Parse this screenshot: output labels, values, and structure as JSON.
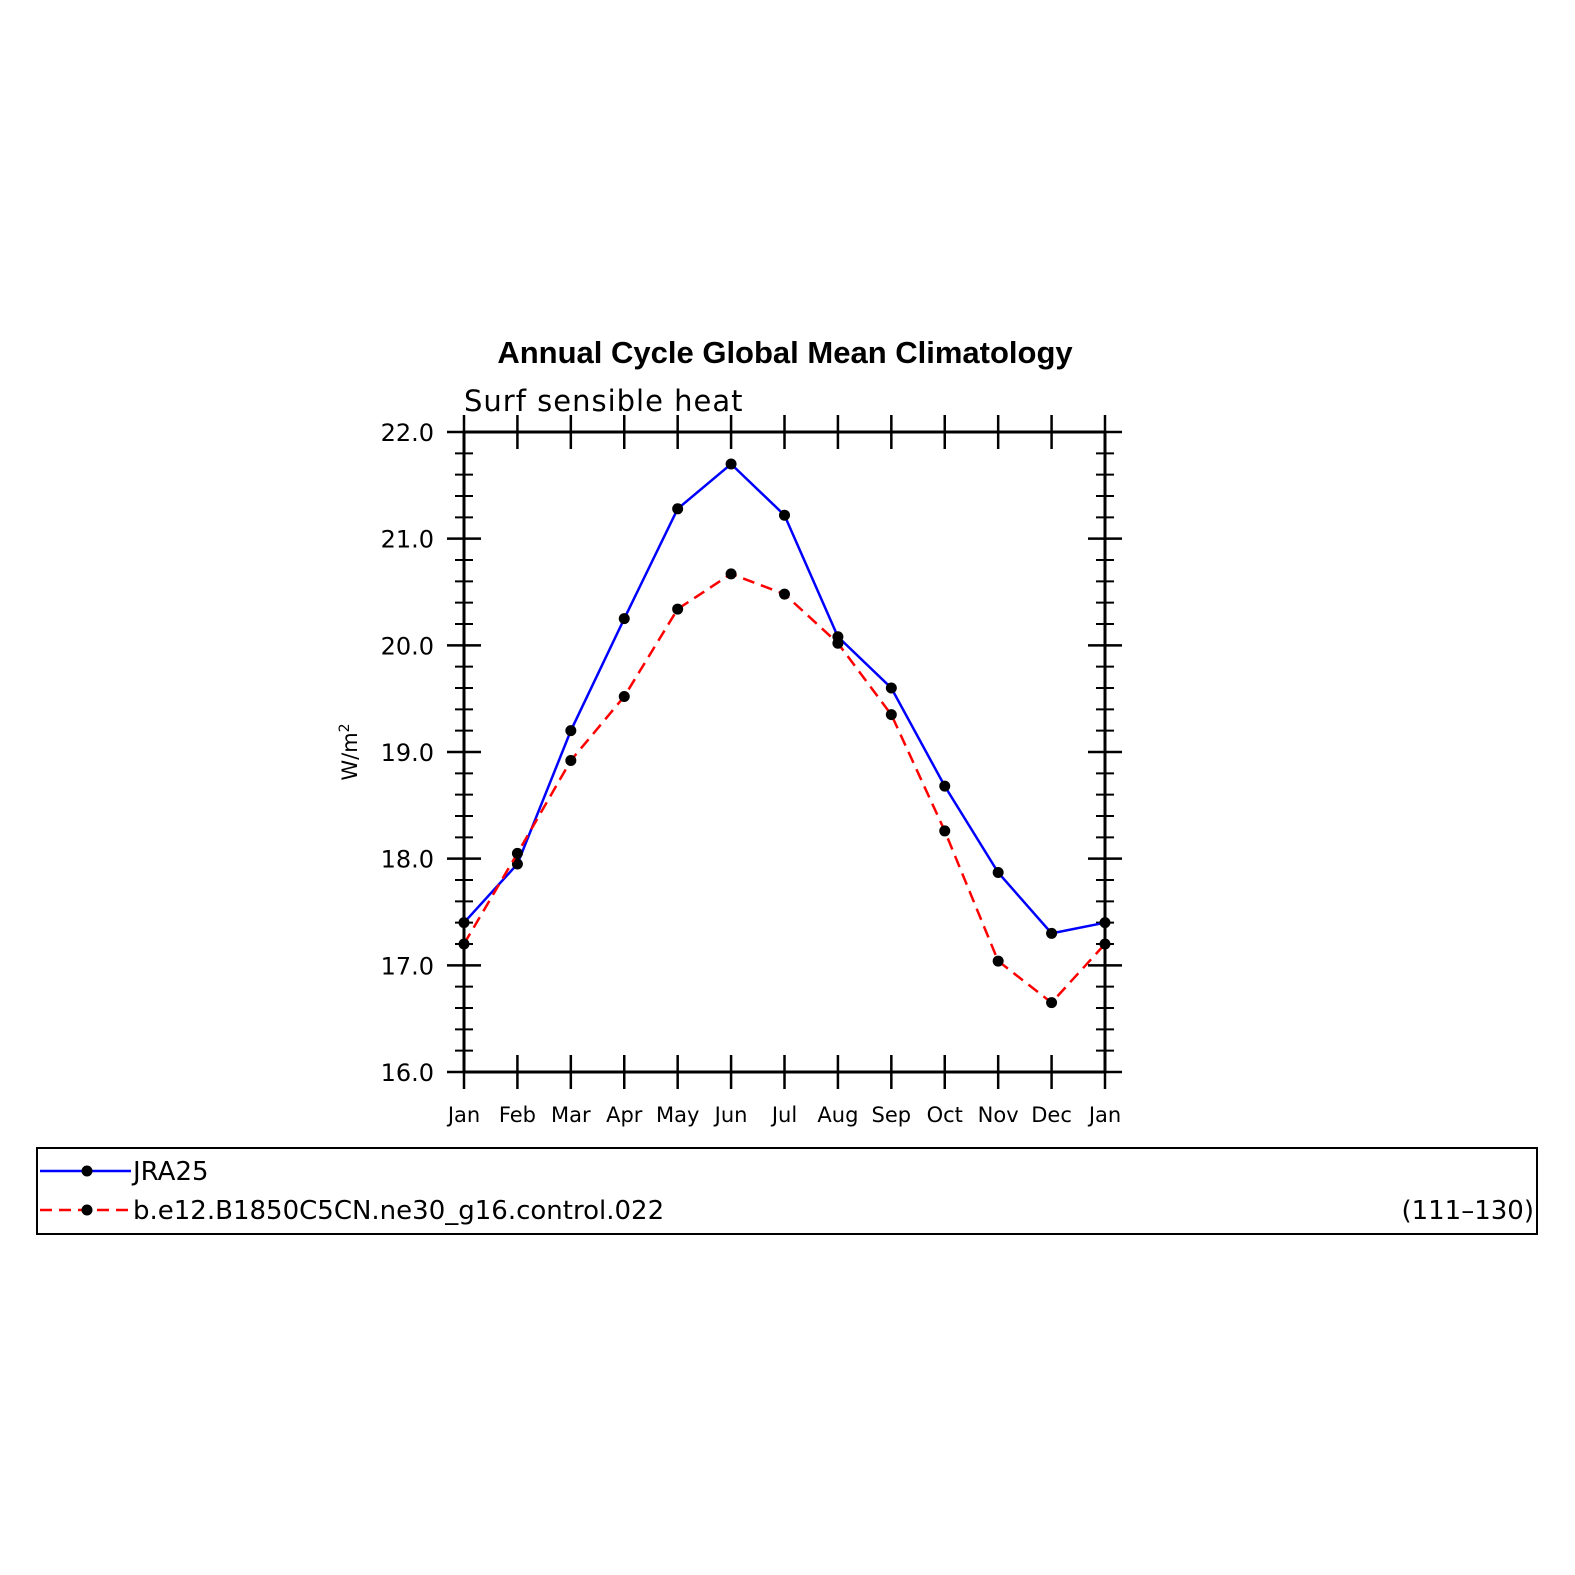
{
  "chart_data": {
    "type": "line",
    "title": "Annual Cycle Global Mean Climatology",
    "subtitle": "Surf sensible heat",
    "ylabel": "W/m",
    "ylabel_superscript": "2",
    "xlabel": "",
    "ylim": [
      16.0,
      22.0
    ],
    "yticks": [
      "16.0",
      "17.0",
      "18.0",
      "19.0",
      "20.0",
      "21.0",
      "22.0"
    ],
    "categories": [
      "Jan",
      "Feb",
      "Mar",
      "Apr",
      "May",
      "Jun",
      "Jul",
      "Aug",
      "Sep",
      "Oct",
      "Nov",
      "Dec",
      "Jan"
    ],
    "grid": false,
    "legend_placement": "bottom",
    "series": [
      {
        "name": "JRA25",
        "color": "#0000ff",
        "line_style": "solid",
        "marker": "filled-circle",
        "values": [
          17.4,
          17.95,
          19.2,
          20.25,
          21.28,
          21.7,
          21.22,
          20.08,
          19.6,
          18.68,
          17.87,
          17.3,
          17.4
        ]
      },
      {
        "name": "b.e12.B1850C5CN.ne30_g16.control.022",
        "color": "#ff0000",
        "line_style": "dashed",
        "marker": "filled-circle",
        "values": [
          17.2,
          18.05,
          18.92,
          19.52,
          20.34,
          20.67,
          20.48,
          20.02,
          19.35,
          18.26,
          17.04,
          16.65,
          17.2
        ]
      }
    ],
    "legend_note": "(111–130)"
  }
}
